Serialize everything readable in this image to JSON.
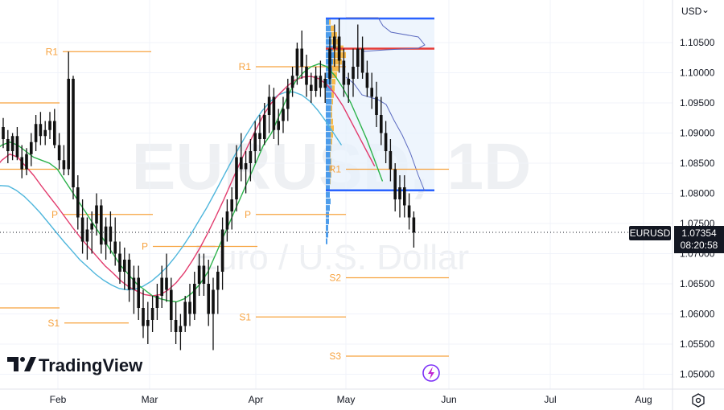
{
  "header": {
    "currency_label": "USD",
    "currency_caret": "⌄"
  },
  "watermark": {
    "symbol": "EURUSD, 1D",
    "name": "Euro / U.S. Dollar"
  },
  "logo": {
    "text": "TradingView"
  },
  "price_tag": {
    "symbol": "EURUSD",
    "price": "1.07354",
    "countdown": "08:20:58"
  },
  "colors": {
    "bull": "#111111",
    "pivot": "#f7a23e",
    "ma_fast": "#2bb24a",
    "ma_mid": "#e23b6d",
    "ma_slow": "#4fb6dc",
    "vp_up": "#2f8ce8",
    "vp_down": "#f7b53a",
    "vp_area": "#e7f1fc",
    "range_line": "#2962ff",
    "poc_line": "#e53935",
    "cursor": "#7b2ff7"
  },
  "chart_data": {
    "type": "candlestick",
    "symbol": "EURUSD",
    "timeframe": "1D",
    "y_axis": {
      "ticks": [
        "1.10500",
        "1.10000",
        "1.09500",
        "1.09000",
        "1.08500",
        "1.08000",
        "1.07500",
        "1.07000",
        "1.06500",
        "1.06000",
        "1.05500",
        "1.05000"
      ],
      "range": [
        1.049,
        1.109
      ]
    },
    "x_axis": {
      "ticks": [
        "Feb",
        "Mar",
        "Apr",
        "May",
        "Jun",
        "Jul",
        "Aug"
      ]
    },
    "last_price": 1.07354,
    "candles": [
      [
        1.091,
        1.0925,
        1.0875,
        1.089
      ],
      [
        1.089,
        1.0905,
        1.085,
        1.087
      ],
      [
        1.087,
        1.09,
        1.0855,
        1.0895
      ],
      [
        1.0895,
        1.091,
        1.0855,
        1.086
      ],
      [
        1.086,
        1.088,
        1.0825,
        1.084
      ],
      [
        1.084,
        1.0875,
        1.083,
        1.0865
      ],
      [
        1.0865,
        1.09,
        1.0845,
        1.0885
      ],
      [
        1.0885,
        1.093,
        1.087,
        1.0915
      ],
      [
        1.0915,
        1.0935,
        1.088,
        1.0895
      ],
      [
        1.0895,
        1.092,
        1.088,
        1.0905
      ],
      [
        1.0905,
        1.0935,
        1.089,
        1.092
      ],
      [
        1.092,
        1.094,
        1.0875,
        1.088
      ],
      [
        1.088,
        1.09,
        1.084,
        1.0855
      ],
      [
        1.0855,
        1.088,
        1.083,
        1.084
      ],
      [
        1.084,
        1.1035,
        1.083,
        1.099
      ],
      [
        1.099,
        1.0995,
        1.079,
        1.081
      ],
      [
        1.081,
        1.083,
        1.074,
        1.076
      ],
      [
        1.076,
        1.079,
        1.07,
        1.072
      ],
      [
        1.072,
        1.076,
        1.069,
        1.074
      ],
      [
        1.074,
        1.077,
        1.07,
        1.075
      ],
      [
        1.075,
        1.08,
        1.073,
        1.078
      ],
      [
        1.078,
        1.079,
        1.07,
        1.0715
      ],
      [
        1.0715,
        1.076,
        1.069,
        1.0745
      ],
      [
        1.0745,
        1.077,
        1.07,
        1.072
      ],
      [
        1.072,
        1.076,
        1.068,
        1.07
      ],
      [
        1.07,
        1.072,
        1.065,
        1.067
      ],
      [
        1.067,
        1.071,
        1.064,
        1.069
      ],
      [
        1.069,
        1.07,
        1.062,
        1.064
      ],
      [
        1.064,
        1.068,
        1.06,
        1.066
      ],
      [
        1.066,
        1.068,
        1.059,
        1.061
      ],
      [
        1.061,
        1.064,
        1.056,
        1.058
      ],
      [
        1.058,
        1.062,
        1.055,
        1.059
      ],
      [
        1.059,
        1.063,
        1.057,
        1.061
      ],
      [
        1.061,
        1.065,
        1.059,
        1.063
      ],
      [
        1.063,
        1.068,
        1.061,
        1.066
      ],
      [
        1.066,
        1.07,
        1.062,
        1.064
      ],
      [
        1.064,
        1.066,
        1.057,
        1.059
      ],
      [
        1.059,
        1.062,
        1.055,
        1.057
      ],
      [
        1.057,
        1.06,
        1.054,
        1.058
      ],
      [
        1.058,
        1.063,
        1.057,
        1.062
      ],
      [
        1.062,
        1.065,
        1.058,
        1.06
      ],
      [
        1.06,
        1.067,
        1.059,
        1.065
      ],
      [
        1.065,
        1.07,
        1.063,
        1.068
      ],
      [
        1.068,
        1.07,
        1.063,
        1.065
      ],
      [
        1.065,
        1.069,
        1.058,
        1.06
      ],
      [
        1.06,
        1.066,
        1.054,
        1.064
      ],
      [
        1.064,
        1.068,
        1.06,
        1.067
      ],
      [
        1.067,
        1.076,
        1.064,
        1.074
      ],
      [
        1.074,
        1.079,
        1.072,
        1.077
      ],
      [
        1.077,
        1.081,
        1.074,
        1.079
      ],
      [
        1.079,
        1.088,
        1.077,
        1.086
      ],
      [
        1.086,
        1.09,
        1.082,
        1.084
      ],
      [
        1.084,
        1.087,
        1.08,
        1.085
      ],
      [
        1.085,
        1.089,
        1.082,
        1.087
      ],
      [
        1.087,
        1.092,
        1.085,
        1.09
      ],
      [
        1.09,
        1.093,
        1.087,
        1.089
      ],
      [
        1.089,
        1.095,
        1.088,
        1.093
      ],
      [
        1.093,
        1.098,
        1.09,
        1.096
      ],
      [
        1.096,
        1.0975,
        1.089,
        1.0905
      ],
      [
        1.0905,
        1.094,
        1.088,
        1.092
      ],
      [
        1.092,
        1.096,
        1.09,
        1.094
      ],
      [
        1.094,
        1.099,
        1.092,
        1.0975
      ],
      [
        1.0975,
        1.101,
        1.096,
        1.0995
      ],
      [
        1.0995,
        1.105,
        1.098,
        1.104
      ],
      [
        1.104,
        1.107,
        1.099,
        1.101
      ],
      [
        1.101,
        1.103,
        1.096,
        1.098
      ],
      [
        1.098,
        1.1,
        1.095,
        1.097
      ],
      [
        1.097,
        1.101,
        1.096,
        1.0995
      ],
      [
        1.0995,
        1.102,
        1.096,
        1.0975
      ],
      [
        1.0975,
        1.1,
        1.095,
        1.099
      ],
      [
        1.099,
        1.106,
        1.098,
        1.104
      ],
      [
        1.104,
        1.108,
        1.101,
        1.106
      ],
      [
        1.106,
        1.109,
        1.1,
        1.102
      ],
      [
        1.102,
        1.104,
        1.096,
        1.098
      ],
      [
        1.098,
        1.1,
        1.095,
        1.099
      ],
      [
        1.099,
        1.104,
        1.096,
        1.101
      ],
      [
        1.101,
        1.108,
        1.099,
        1.104
      ],
      [
        1.104,
        1.106,
        1.099,
        1.1
      ],
      [
        1.1,
        1.102,
        1.096,
        1.0975
      ],
      [
        1.0975,
        1.1,
        1.094,
        1.096
      ],
      [
        1.096,
        1.0985,
        1.091,
        1.093
      ],
      [
        1.093,
        1.096,
        1.088,
        1.09
      ],
      [
        1.09,
        1.092,
        1.085,
        1.087
      ],
      [
        1.087,
        1.089,
        1.082,
        1.084
      ],
      [
        1.084,
        1.085,
        1.077,
        1.079
      ],
      [
        1.079,
        1.083,
        1.076,
        1.081
      ],
      [
        1.081,
        1.083,
        1.076,
        1.078
      ],
      [
        1.078,
        1.08,
        1.074,
        1.076
      ],
      [
        1.076,
        1.077,
        1.071,
        1.0735
      ]
    ],
    "moving_averages": {
      "fast": [
        1.087,
        1.088,
        1.0885,
        1.088,
        1.087,
        1.086,
        1.0855,
        1.085,
        1.084,
        1.082,
        1.08,
        1.078,
        1.076,
        1.074,
        1.072,
        1.07,
        1.068,
        1.0665,
        1.065,
        1.064,
        1.063,
        1.0625,
        1.0622,
        1.062,
        1.0625,
        1.0635,
        1.065,
        1.067,
        1.07,
        1.073,
        1.076,
        1.079,
        1.082,
        1.085,
        1.088,
        1.09,
        1.093,
        1.096,
        1.0985,
        1.1,
        1.101,
        1.1015,
        1.101,
        1.0995,
        1.0975,
        1.095,
        1.092,
        1.089,
        1.0855,
        1.082
      ],
      "mid": [
        1.084,
        1.0855,
        1.0865,
        1.086,
        1.0845,
        1.083,
        1.0812,
        1.0795,
        1.0778,
        1.076,
        1.0742,
        1.0725,
        1.071,
        1.0695,
        1.068,
        1.0668,
        1.0655,
        1.0645,
        1.0638,
        1.0632,
        1.063,
        1.0632,
        1.064,
        1.0652,
        1.0668,
        1.0688,
        1.071,
        1.0735,
        1.0762,
        1.079,
        1.082,
        1.085,
        1.0878,
        1.0905,
        1.093,
        1.095,
        1.0965,
        1.0978,
        1.0988,
        1.0993,
        1.0994,
        1.099,
        1.098,
        1.0965,
        1.0945,
        1.092,
        1.0895,
        1.087,
        1.0845
      ],
      "slow": [
        1.08,
        1.0808,
        1.0813,
        1.0812,
        1.0805,
        1.0795,
        1.0782,
        1.0768,
        1.0752,
        1.0736,
        1.072,
        1.0705,
        1.069,
        1.0678,
        1.0666,
        1.0656,
        1.0648,
        1.0642,
        1.064,
        1.0641,
        1.0646,
        1.0654,
        1.0665,
        1.0678,
        1.0694,
        1.0712,
        1.0732,
        1.0754,
        1.0776,
        1.08,
        1.0825,
        1.085,
        1.0874,
        1.0897,
        1.0918,
        1.0937,
        1.0952,
        1.0963,
        1.0968,
        1.0968,
        1.0963,
        1.0953,
        1.0938,
        1.092,
        1.09,
        1.088
      ]
    },
    "pivots": [
      {
        "label": "R1",
        "price": 1.1035
      },
      {
        "label": "S1",
        "price": 1.0585
      },
      {
        "label": "P",
        "price": 1.0765
      },
      {
        "label": "P",
        "price": 1.0712
      },
      {
        "label": "R1",
        "price": 1.101
      },
      {
        "label": "P",
        "price": 1.0765
      },
      {
        "label": "S1",
        "price": 1.0595
      },
      {
        "label": "R1",
        "price": 1.084
      },
      {
        "label": "S2",
        "price": 1.066
      },
      {
        "label": "S3",
        "price": 1.053
      }
    ],
    "volume_profile": {
      "range_high": 1.109,
      "range_low": 1.0805,
      "poc": 1.104
    }
  }
}
